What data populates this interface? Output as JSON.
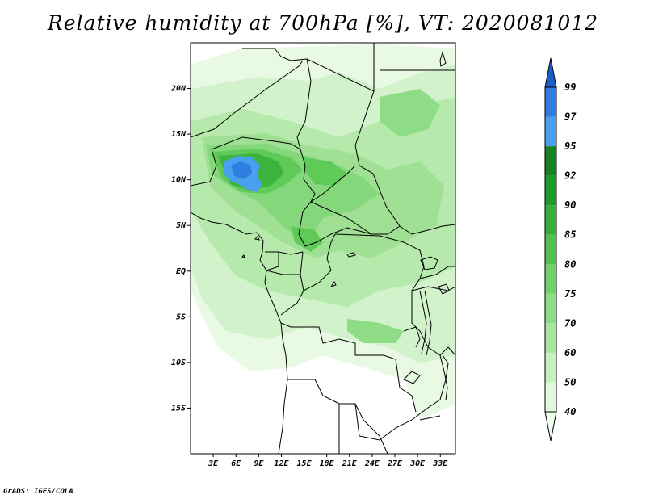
{
  "title": "Relative humidity at 700hPa [%], VT: 2020081012",
  "footer": "GrADS: IGES/COLA",
  "map": {
    "lon_labels": [
      "3E",
      "6E",
      "9E",
      "12E",
      "15E",
      "18E",
      "21E",
      "24E",
      "27E",
      "30E",
      "33E"
    ],
    "lat_labels": [
      "20N",
      "15N",
      "10N",
      "5N",
      "EQ",
      "5S",
      "10S",
      "15S"
    ],
    "lon_range": [
      0,
      35
    ],
    "lat_range": [
      -20,
      25
    ]
  },
  "colorbar": {
    "levels": [
      "40",
      "50",
      "60",
      "70",
      "75",
      "80",
      "85",
      "90",
      "92",
      "95",
      "97",
      "99"
    ],
    "colors": [
      "#f0fff0",
      "#e0f8dc",
      "#c6f0c0",
      "#a8e6a0",
      "#8edc86",
      "#70d06a",
      "#52c24e",
      "#36b03a",
      "#1e9a2a",
      "#138420",
      "#4aa0f0",
      "#2f7ee0",
      "#1a5fc8"
    ]
  }
}
